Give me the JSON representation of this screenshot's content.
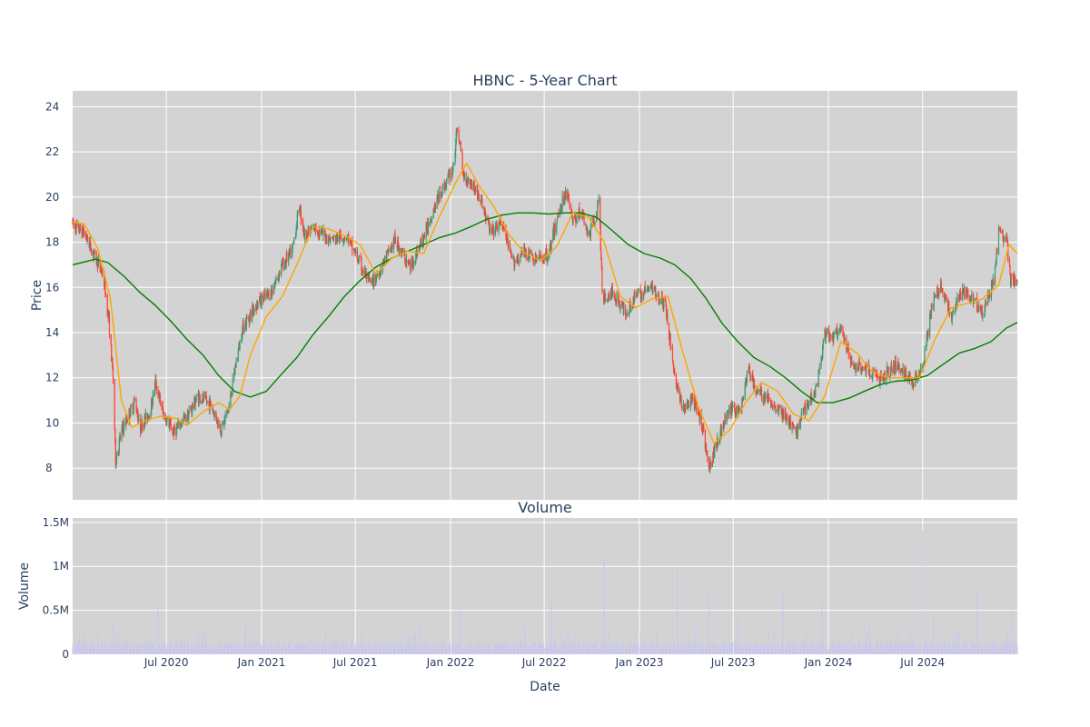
{
  "chart_data": [
    {
      "type": "candlestick",
      "title": "HBNC - 5-Year Chart",
      "ylabel": "Price",
      "xlabel": "",
      "ylim": [
        6.6,
        24.7
      ],
      "xlim": [
        "2020-01-02",
        "2024-12-31"
      ],
      "yticks": [
        8,
        10,
        12,
        14,
        16,
        18,
        20,
        22,
        24
      ],
      "grid": true,
      "colors": {
        "up": "#3d9970",
        "down": "#ff4136",
        "ma_short": "#ffa500",
        "ma_long": "#008000",
        "plot_bg": "#d3d3d3"
      },
      "price_path": [
        [
          "2020-01-02",
          18.8
        ],
        [
          "2020-01-25",
          18.4
        ],
        [
          "2020-02-15",
          17.3
        ],
        [
          "2020-03-01",
          16.6
        ],
        [
          "2020-03-12",
          14.5
        ],
        [
          "2020-03-20",
          12.0
        ],
        [
          "2020-03-25",
          8.3
        ],
        [
          "2020-04-05",
          9.6
        ],
        [
          "2020-04-20",
          10.4
        ],
        [
          "2020-05-01",
          11.0
        ],
        [
          "2020-05-12",
          9.8
        ],
        [
          "2020-06-01",
          10.6
        ],
        [
          "2020-06-10",
          11.8
        ],
        [
          "2020-06-25",
          10.4
        ],
        [
          "2020-07-15",
          9.6
        ],
        [
          "2020-08-10",
          10.3
        ],
        [
          "2020-09-01",
          11.2
        ],
        [
          "2020-09-25",
          10.8
        ],
        [
          "2020-10-15",
          9.7
        ],
        [
          "2020-10-30",
          10.7
        ],
        [
          "2020-11-10",
          12.3
        ],
        [
          "2020-11-25",
          14.2
        ],
        [
          "2020-12-20",
          15.2
        ],
        [
          "2021-01-20",
          15.8
        ],
        [
          "2021-02-10",
          17.0
        ],
        [
          "2021-03-01",
          17.6
        ],
        [
          "2021-03-15",
          19.6
        ],
        [
          "2021-03-25",
          18.3
        ],
        [
          "2021-04-15",
          18.6
        ],
        [
          "2021-05-15",
          18.1
        ],
        [
          "2021-06-15",
          18.3
        ],
        [
          "2021-07-15",
          16.8
        ],
        [
          "2021-08-01",
          16.1
        ],
        [
          "2021-08-20",
          16.9
        ],
        [
          "2021-09-15",
          18.1
        ],
        [
          "2021-10-15",
          16.9
        ],
        [
          "2021-11-10",
          18.2
        ],
        [
          "2021-12-01",
          19.6
        ],
        [
          "2021-12-20",
          20.5
        ],
        [
          "2022-01-05",
          21.2
        ],
        [
          "2022-01-15",
          23.2
        ],
        [
          "2022-01-25",
          21.0
        ],
        [
          "2022-02-15",
          20.5
        ],
        [
          "2022-03-01",
          19.8
        ],
        [
          "2022-03-20",
          18.4
        ],
        [
          "2022-04-10",
          18.9
        ],
        [
          "2022-05-01",
          17.1
        ],
        [
          "2022-05-25",
          17.6
        ],
        [
          "2022-06-15",
          17.2
        ],
        [
          "2022-07-10",
          17.5
        ],
        [
          "2022-08-01",
          19.6
        ],
        [
          "2022-08-15",
          20.3
        ],
        [
          "2022-08-25",
          18.9
        ],
        [
          "2022-09-10",
          19.4
        ],
        [
          "2022-09-25",
          18.2
        ],
        [
          "2022-10-15",
          19.8
        ],
        [
          "2022-10-22",
          15.4
        ],
        [
          "2022-11-10",
          15.8
        ],
        [
          "2022-12-05",
          14.9
        ],
        [
          "2022-12-25",
          15.6
        ],
        [
          "2023-01-25",
          16.0
        ],
        [
          "2023-02-20",
          15.2
        ],
        [
          "2023-03-10",
          12.1
        ],
        [
          "2023-03-25",
          10.6
        ],
        [
          "2023-04-15",
          11.0
        ],
        [
          "2023-05-05",
          9.7
        ],
        [
          "2023-05-15",
          7.9
        ],
        [
          "2023-06-01",
          9.3
        ],
        [
          "2023-06-25",
          10.6
        ],
        [
          "2023-07-15",
          10.5
        ],
        [
          "2023-07-30",
          12.4
        ],
        [
          "2023-08-15",
          11.4
        ],
        [
          "2023-09-10",
          11.0
        ],
        [
          "2023-10-10",
          10.3
        ],
        [
          "2023-10-30",
          9.5
        ],
        [
          "2023-11-15",
          10.6
        ],
        [
          "2023-12-10",
          11.6
        ],
        [
          "2023-12-25",
          13.9
        ],
        [
          "2024-01-10",
          13.8
        ],
        [
          "2024-01-25",
          14.1
        ],
        [
          "2024-02-15",
          12.6
        ],
        [
          "2024-03-15",
          12.4
        ],
        [
          "2024-04-10",
          11.9
        ],
        [
          "2024-05-10",
          12.6
        ],
        [
          "2024-06-10",
          11.8
        ],
        [
          "2024-07-01",
          12.5
        ],
        [
          "2024-07-20",
          15.3
        ],
        [
          "2024-08-05",
          16.1
        ],
        [
          "2024-08-25",
          14.7
        ],
        [
          "2024-09-15",
          15.8
        ],
        [
          "2024-10-10",
          15.5
        ],
        [
          "2024-10-25",
          14.8
        ],
        [
          "2024-11-15",
          16.3
        ],
        [
          "2024-11-25",
          18.4
        ],
        [
          "2024-12-10",
          18.1
        ],
        [
          "2024-12-18",
          16.3
        ],
        [
          "2024-12-31",
          16.2
        ]
      ],
      "ma_short": [
        [
          "2020-01-02",
          18.9
        ],
        [
          "2020-01-25",
          18.8
        ],
        [
          "2020-02-20",
          17.7
        ],
        [
          "2020-03-15",
          15.5
        ],
        [
          "2020-04-05",
          11.0
        ],
        [
          "2020-04-25",
          9.8
        ],
        [
          "2020-05-20",
          10.1
        ],
        [
          "2020-06-20",
          10.3
        ],
        [
          "2020-07-20",
          10.2
        ],
        [
          "2020-08-10",
          9.9
        ],
        [
          "2020-09-10",
          10.5
        ],
        [
          "2020-10-10",
          10.9
        ],
        [
          "2020-11-01",
          10.6
        ],
        [
          "2020-11-20",
          11.2
        ],
        [
          "2020-12-10",
          13.0
        ],
        [
          "2021-01-10",
          14.7
        ],
        [
          "2021-02-10",
          15.6
        ],
        [
          "2021-03-10",
          17.0
        ],
        [
          "2021-04-10",
          18.7
        ],
        [
          "2021-05-10",
          18.6
        ],
        [
          "2021-06-10",
          18.3
        ],
        [
          "2021-07-10",
          17.9
        ],
        [
          "2021-08-10",
          16.6
        ],
        [
          "2021-09-10",
          17.3
        ],
        [
          "2021-10-10",
          17.6
        ],
        [
          "2021-11-10",
          17.5
        ],
        [
          "2021-12-10",
          19.1
        ],
        [
          "2022-01-10",
          20.6
        ],
        [
          "2022-02-01",
          21.5
        ],
        [
          "2022-02-25",
          20.5
        ],
        [
          "2022-03-25",
          19.6
        ],
        [
          "2022-04-25",
          18.3
        ],
        [
          "2022-05-25",
          17.5
        ],
        [
          "2022-06-25",
          17.2
        ],
        [
          "2022-07-25",
          17.8
        ],
        [
          "2022-08-25",
          19.3
        ],
        [
          "2022-09-25",
          19.1
        ],
        [
          "2022-10-25",
          18.0
        ],
        [
          "2022-11-25",
          15.6
        ],
        [
          "2022-12-25",
          15.1
        ],
        [
          "2023-01-25",
          15.5
        ],
        [
          "2023-02-25",
          15.6
        ],
        [
          "2023-03-25",
          13.2
        ],
        [
          "2023-04-25",
          10.7
        ],
        [
          "2023-05-25",
          9.1
        ],
        [
          "2023-06-25",
          9.7
        ],
        [
          "2023-07-25",
          10.9
        ],
        [
          "2023-08-25",
          11.8
        ],
        [
          "2023-09-25",
          11.4
        ],
        [
          "2023-10-25",
          10.4
        ],
        [
          "2023-11-25",
          10.1
        ],
        [
          "2023-12-25",
          11.2
        ],
        [
          "2024-01-25",
          13.6
        ],
        [
          "2024-02-25",
          13.1
        ],
        [
          "2024-03-25",
          12.3
        ],
        [
          "2024-04-25",
          12.0
        ],
        [
          "2024-05-25",
          12.0
        ],
        [
          "2024-06-25",
          12.0
        ],
        [
          "2024-07-25",
          13.7
        ],
        [
          "2024-08-25",
          15.1
        ],
        [
          "2024-09-25",
          15.3
        ],
        [
          "2024-10-25",
          15.5
        ],
        [
          "2024-11-25",
          16.1
        ],
        [
          "2024-12-15",
          17.9
        ],
        [
          "2024-12-31",
          17.5
        ]
      ],
      "ma_long": [
        [
          "2020-01-02",
          17.0
        ],
        [
          "2020-02-15",
          17.25
        ],
        [
          "2020-03-10",
          17.1
        ],
        [
          "2020-04-10",
          16.5
        ],
        [
          "2020-05-10",
          15.8
        ],
        [
          "2020-06-10",
          15.2
        ],
        [
          "2020-07-10",
          14.5
        ],
        [
          "2020-08-10",
          13.7
        ],
        [
          "2020-09-10",
          13.0
        ],
        [
          "2020-10-10",
          12.1
        ],
        [
          "2020-11-10",
          11.4
        ],
        [
          "2020-12-10",
          11.15
        ],
        [
          "2021-01-10",
          11.4
        ],
        [
          "2021-02-10",
          12.2
        ],
        [
          "2021-03-10",
          12.9
        ],
        [
          "2021-04-10",
          13.9
        ],
        [
          "2021-05-10",
          14.7
        ],
        [
          "2021-06-10",
          15.6
        ],
        [
          "2021-07-10",
          16.3
        ],
        [
          "2021-08-10",
          16.9
        ],
        [
          "2021-09-10",
          17.3
        ],
        [
          "2021-10-10",
          17.6
        ],
        [
          "2021-11-10",
          17.9
        ],
        [
          "2021-12-10",
          18.2
        ],
        [
          "2022-01-10",
          18.4
        ],
        [
          "2022-02-10",
          18.7
        ],
        [
          "2022-03-10",
          19.0
        ],
        [
          "2022-04-10",
          19.2
        ],
        [
          "2022-05-10",
          19.3
        ],
        [
          "2022-06-10",
          19.3
        ],
        [
          "2022-07-10",
          19.25
        ],
        [
          "2022-08-10",
          19.3
        ],
        [
          "2022-09-10",
          19.3
        ],
        [
          "2022-10-10",
          19.1
        ],
        [
          "2022-11-10",
          18.5
        ],
        [
          "2022-12-10",
          17.9
        ],
        [
          "2023-01-10",
          17.5
        ],
        [
          "2023-02-10",
          17.3
        ],
        [
          "2023-03-10",
          17.0
        ],
        [
          "2023-04-10",
          16.4
        ],
        [
          "2023-05-10",
          15.5
        ],
        [
          "2023-06-10",
          14.4
        ],
        [
          "2023-07-10",
          13.6
        ],
        [
          "2023-08-10",
          12.9
        ],
        [
          "2023-09-10",
          12.5
        ],
        [
          "2023-10-10",
          12.0
        ],
        [
          "2023-11-10",
          11.4
        ],
        [
          "2023-12-10",
          10.9
        ],
        [
          "2024-01-10",
          10.9
        ],
        [
          "2024-02-10",
          11.1
        ],
        [
          "2024-03-10",
          11.4
        ],
        [
          "2024-04-10",
          11.7
        ],
        [
          "2024-05-10",
          11.85
        ],
        [
          "2024-06-10",
          11.9
        ],
        [
          "2024-07-10",
          12.1
        ],
        [
          "2024-08-10",
          12.6
        ],
        [
          "2024-09-10",
          13.1
        ],
        [
          "2024-10-10",
          13.3
        ],
        [
          "2024-11-10",
          13.6
        ],
        [
          "2024-12-10",
          14.2
        ],
        [
          "2024-12-31",
          14.45
        ]
      ]
    },
    {
      "type": "bar",
      "title": "Volume",
      "ylabel": "Volume",
      "xlabel": "Date",
      "ylim": [
        0,
        1550000
      ],
      "yticks": [
        0,
        500000,
        1000000,
        1500000
      ],
      "yticklabels": [
        "0",
        "0.5M",
        "1M",
        "1.5M"
      ],
      "xticks": [
        "2020-07-01",
        "2021-01-01",
        "2021-07-01",
        "2022-01-01",
        "2022-07-01",
        "2023-01-01",
        "2023-07-01",
        "2024-01-01",
        "2024-07-01"
      ],
      "xticklabels": [
        "Jul 2020",
        "Jan 2021",
        "Jul 2021",
        "Jan 2022",
        "Jul 2022",
        "Jan 2023",
        "Jul 2023",
        "Jan 2024",
        "Jul 2024"
      ],
      "grid": true,
      "colors": {
        "bar": "#c9c6ee",
        "plot_bg": "#d3d3d3"
      },
      "baseline": 110000,
      "spikes": [
        [
          "2020-03-20",
          350000
        ],
        [
          "2020-04-25",
          320000
        ],
        [
          "2020-06-15",
          520000
        ],
        [
          "2020-06-28",
          900000
        ],
        [
          "2020-09-15",
          300000
        ],
        [
          "2020-12-01",
          360000
        ],
        [
          "2021-03-20",
          680000
        ],
        [
          "2021-06-25",
          480000
        ],
        [
          "2021-11-01",
          370000
        ],
        [
          "2021-12-25",
          700000
        ],
        [
          "2022-01-20",
          510000
        ],
        [
          "2022-05-25",
          330000
        ],
        [
          "2022-07-15",
          650000
        ],
        [
          "2022-10-15",
          440000
        ],
        [
          "2022-10-24",
          1080000
        ],
        [
          "2022-12-10",
          430000
        ],
        [
          "2023-03-15",
          1000000
        ],
        [
          "2023-03-25",
          700000
        ],
        [
          "2023-04-20",
          420000
        ],
        [
          "2023-05-15",
          740000
        ],
        [
          "2023-06-25",
          1420000
        ],
        [
          "2023-07-10",
          420000
        ],
        [
          "2023-10-05",
          700000
        ],
        [
          "2023-12-20",
          620000
        ],
        [
          "2024-03-20",
          430000
        ],
        [
          "2024-07-01",
          1410000
        ],
        [
          "2024-07-22",
          460000
        ],
        [
          "2024-10-15",
          720000
        ],
        [
          "2024-12-01",
          580000
        ],
        [
          "2024-12-20",
          500000
        ]
      ]
    }
  ]
}
